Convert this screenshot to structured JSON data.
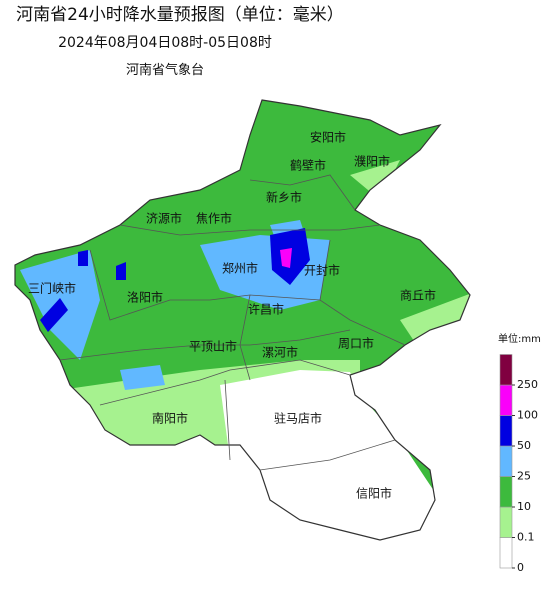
{
  "header": {
    "title": "河南省24小时降水量预报图（单位：毫米）",
    "subtitle": "2024年08月04日08时-05日08时",
    "agency": "河南省气象台"
  },
  "cities": [
    "安阳市",
    "鹤壁市",
    "濮阳市",
    "新乡市",
    "济源市",
    "焦作市",
    "三门峡市",
    "洛阳市",
    "郑州市",
    "开封市",
    "商丘市",
    "许昌市",
    "平顶山市",
    "漯河市",
    "周口市",
    "南阳市",
    "驻马店市",
    "信阳市"
  ],
  "legend": {
    "title": "单位:mm",
    "ticks": [
      0,
      0.1,
      10,
      25,
      50,
      100,
      250
    ],
    "colors": [
      "#ffffff",
      "#a6f28f",
      "#3dba3d",
      "#61b8ff",
      "#0000e1",
      "#fa00fa",
      "#800040"
    ]
  }
}
